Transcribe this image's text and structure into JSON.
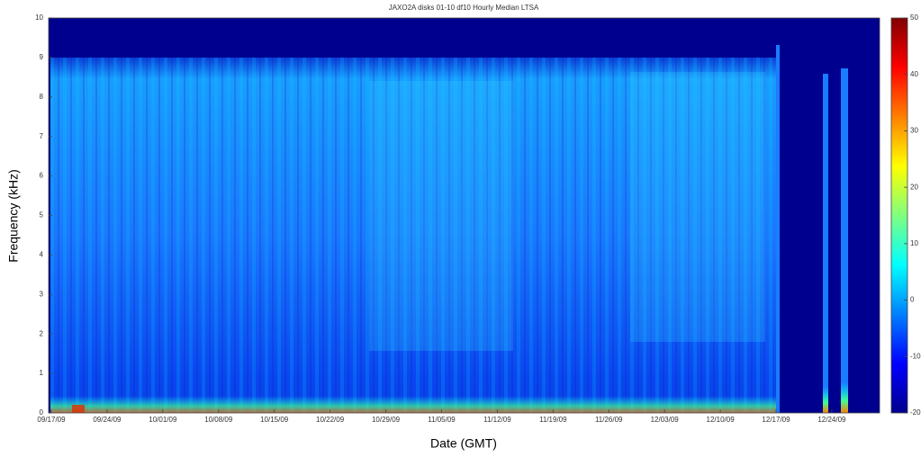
{
  "chart_data": {
    "type": "heatmap",
    "title": "JAXO2A disks 01-10 df10 Hourly Median LTSA",
    "x_label": "Date (GMT)",
    "y_label": "Frequency (kHz)",
    "xlim": [
      "2009-09-17",
      "2009-12-30"
    ],
    "xticks": [
      {
        "value": "2009-09-17",
        "label": "09/17/09"
      },
      {
        "value": "2009-09-24",
        "label": "09/24/09"
      },
      {
        "value": "2009-10-01",
        "label": "10/01/09"
      },
      {
        "value": "2009-10-08",
        "label": "10/08/09"
      },
      {
        "value": "2009-10-15",
        "label": "10/15/09"
      },
      {
        "value": "2009-10-22",
        "label": "10/22/09"
      },
      {
        "value": "2009-10-29",
        "label": "10/29/09"
      },
      {
        "value": "2009-11-05",
        "label": "11/05/09"
      },
      {
        "value": "2009-11-12",
        "label": "11/12/09"
      },
      {
        "value": "2009-11-19",
        "label": "11/19/09"
      },
      {
        "value": "2009-11-26",
        "label": "11/26/09"
      },
      {
        "value": "2009-12-03",
        "label": "12/03/09"
      },
      {
        "value": "2009-12-10",
        "label": "12/10/09"
      },
      {
        "value": "2009-12-17",
        "label": "12/17/09"
      },
      {
        "value": "2009-12-24",
        "label": "12/24/09"
      }
    ],
    "ylim": [
      0,
      10
    ],
    "yticks": [
      0,
      1,
      2,
      3,
      4,
      5,
      6,
      7,
      8,
      9,
      10
    ],
    "colorbar": {
      "colormap": "jet",
      "lim": [
        -20,
        50
      ],
      "ticks": [
        -20,
        -10,
        0,
        10,
        20,
        30,
        40,
        50
      ]
    },
    "grid": false
  }
}
